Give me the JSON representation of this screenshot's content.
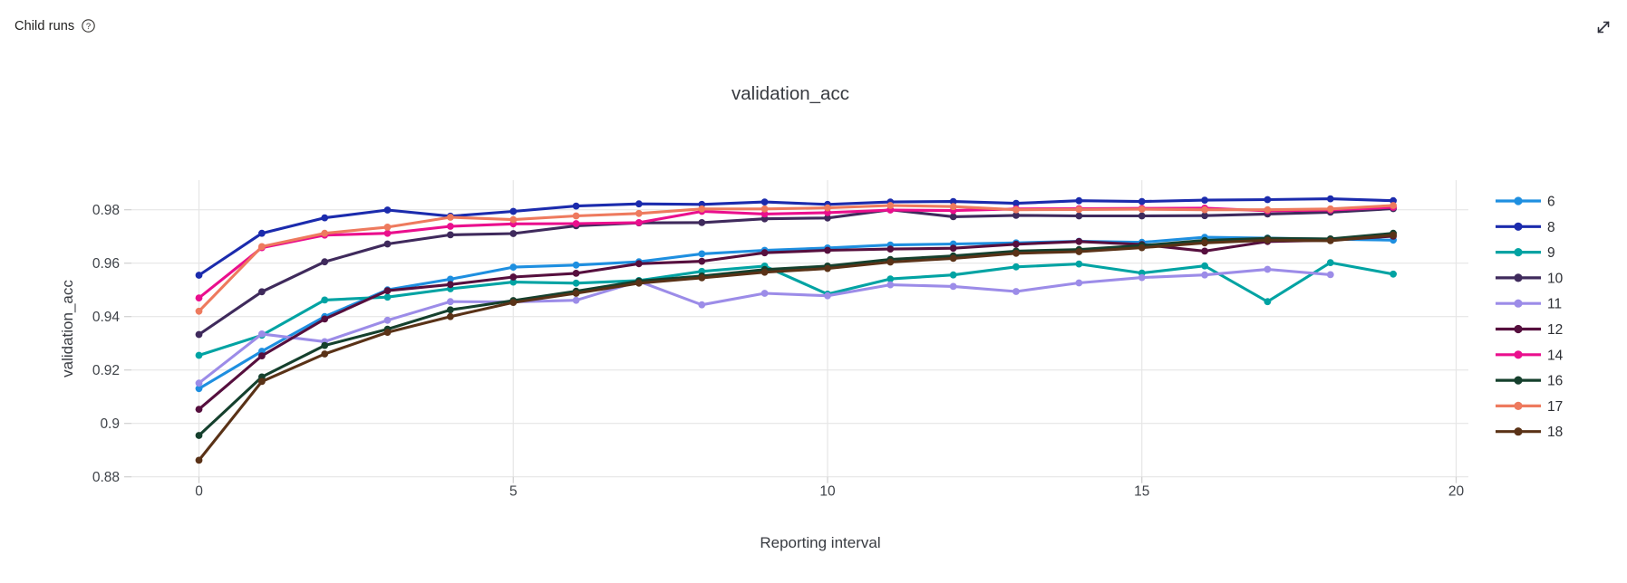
{
  "header": {
    "title": "Child runs",
    "help_icon": "question-mark-circle-icon",
    "expand_icon": "diagonal-expand-arrows-icon"
  },
  "chart_data": {
    "type": "line",
    "title": "validation_acc",
    "xlabel": "Reporting interval",
    "ylabel": "validation_acc",
    "x_ticks": [
      0,
      5,
      10,
      15,
      20
    ],
    "y_ticks": [
      0.88,
      0.9,
      0.92,
      0.94,
      0.96,
      0.98
    ],
    "xlim": [
      -1.1,
      20.2
    ],
    "ylim": [
      0.879,
      0.991
    ],
    "grid": true,
    "legend_position": "right",
    "x_values": [
      0,
      1,
      2,
      3,
      4,
      5,
      6,
      7,
      8,
      9,
      10,
      11,
      12,
      13,
      14,
      15,
      16,
      17,
      18,
      19
    ],
    "series": [
      {
        "label": "6",
        "color": "#1e8fe0",
        "values": [
          0.913,
          0.927,
          0.94,
          0.95,
          0.954,
          0.9585,
          0.9593,
          0.9605,
          0.9635,
          0.9648,
          0.9657,
          0.9668,
          0.9672,
          0.9676,
          0.9682,
          0.9678,
          0.9697,
          0.9694,
          0.969,
          0.9686
        ]
      },
      {
        "label": "8",
        "color": "#1b2bad",
        "values": [
          0.9555,
          0.9712,
          0.977,
          0.9799,
          0.9776,
          0.9794,
          0.9814,
          0.9822,
          0.982,
          0.9829,
          0.982,
          0.9829,
          0.9831,
          0.9824,
          0.9834,
          0.9831,
          0.9836,
          0.9838,
          0.9841,
          0.9834
        ]
      },
      {
        "label": "9",
        "color": "#00a3a3",
        "values": [
          0.9255,
          0.933,
          0.9462,
          0.9473,
          0.9504,
          0.9529,
          0.9525,
          0.9535,
          0.9569,
          0.9589,
          0.9484,
          0.9541,
          0.9556,
          0.9586,
          0.9597,
          0.9563,
          0.959,
          0.9456,
          0.9602,
          0.9559
        ]
      },
      {
        "label": "10",
        "color": "#3f2a5c",
        "values": [
          0.9333,
          0.9493,
          0.9605,
          0.9672,
          0.9706,
          0.9711,
          0.974,
          0.9751,
          0.9752,
          0.9766,
          0.9769,
          0.98,
          0.9774,
          0.9779,
          0.9777,
          0.9777,
          0.9778,
          0.9784,
          0.9791,
          0.9804
        ]
      },
      {
        "label": "11",
        "color": "#9c8ce8",
        "values": [
          0.9151,
          0.9335,
          0.9306,
          0.9386,
          0.9456,
          0.9455,
          0.9461,
          0.9532,
          0.9444,
          0.9487,
          0.9478,
          0.9519,
          0.9513,
          0.9494,
          0.9526,
          0.9546,
          0.9556,
          0.9577,
          0.9557
        ]
      },
      {
        "label": "12",
        "color": "#560f3e",
        "values": [
          0.9053,
          0.9253,
          0.9391,
          0.9497,
          0.952,
          0.9548,
          0.9562,
          0.9598,
          0.9607,
          0.9639,
          0.9648,
          0.9653,
          0.9656,
          0.9671,
          0.9681,
          0.967,
          0.9645,
          0.9681,
          0.9686,
          0.9701
        ]
      },
      {
        "label": "14",
        "color": "#ea0f8d",
        "values": [
          0.947,
          0.9658,
          0.9705,
          0.9712,
          0.9738,
          0.9747,
          0.9748,
          0.9752,
          0.9794,
          0.9784,
          0.9789,
          0.9799,
          0.9797,
          0.9803,
          0.9804,
          0.9805,
          0.9806,
          0.9796,
          0.9799,
          0.9809
        ]
      },
      {
        "label": "16",
        "color": "#15402d",
        "values": [
          0.8955,
          0.9174,
          0.9292,
          0.9353,
          0.9425,
          0.946,
          0.9495,
          0.9533,
          0.9552,
          0.9576,
          0.9589,
          0.9614,
          0.9627,
          0.9645,
          0.9651,
          0.9666,
          0.9685,
          0.9693,
          0.9691,
          0.9712
        ]
      },
      {
        "label": "17",
        "color": "#ee7a5e",
        "values": [
          0.942,
          0.9662,
          0.9712,
          0.9735,
          0.9772,
          0.9763,
          0.9777,
          0.9786,
          0.9803,
          0.9803,
          0.9807,
          0.9816,
          0.9812,
          0.98,
          0.9801,
          0.9802,
          0.98,
          0.98,
          0.9803,
          0.9816
        ]
      },
      {
        "label": "18",
        "color": "#5a3217",
        "values": [
          0.8862,
          0.9157,
          0.926,
          0.9341,
          0.94,
          0.9453,
          0.9487,
          0.9525,
          0.9545,
          0.9566,
          0.958,
          0.9604,
          0.9618,
          0.9637,
          0.9643,
          0.9658,
          0.9676,
          0.9686,
          0.9684,
          0.9705
        ]
      }
    ],
    "colors": {
      "gridline": "#e6e6e6",
      "tick_mark": "#cfcfcf",
      "tick_text": "#3f4349",
      "title_text": "#383b41"
    }
  }
}
